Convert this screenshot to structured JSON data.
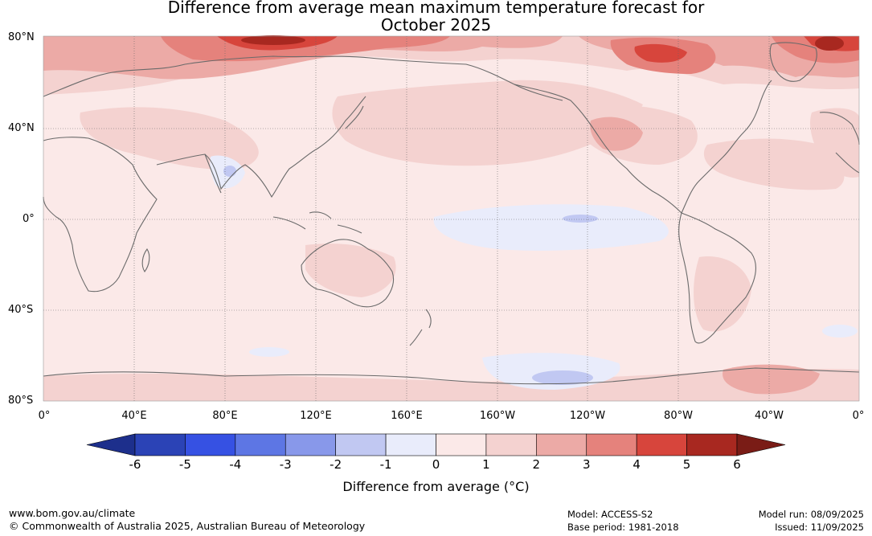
{
  "title": {
    "line1": "Difference from average mean maximum temperature forecast for",
    "line2": "October 2025"
  },
  "lat_labels": [
    "80°N",
    "40°N",
    "0°",
    "40°S",
    "80°S"
  ],
  "lon_labels": [
    "0°",
    "40°E",
    "80°E",
    "120°E",
    "160°E",
    "160°W",
    "120°W",
    "80°W",
    "40°W",
    "0°"
  ],
  "colorbar": {
    "ticks": [
      "-6",
      "-5",
      "-4",
      "-3",
      "-2",
      "-1",
      "0",
      "1",
      "2",
      "3",
      "4",
      "5",
      "6"
    ],
    "colors": [
      "#1d2f8c",
      "#2b43b6",
      "#3651e3",
      "#5d76e4",
      "#8898ea",
      "#c1c8f2",
      "#e9ecfb",
      "#fbe9e8",
      "#f4d2d0",
      "#ecaaa6",
      "#e5827c",
      "#d7453c",
      "#a82820",
      "#7a1c16"
    ],
    "label": "Difference from average (°C)"
  },
  "footer": {
    "url": "www.bom.gov.au/climate",
    "copyright": "© Commonwealth of Australia 2025, Australian Bureau of Meteorology",
    "model": "Model: ACCESS-S2",
    "base_period": "Base period: 1981-2018",
    "model_run": "Model run: 08/09/2025",
    "issued": "Issued: 11/09/2025"
  }
}
